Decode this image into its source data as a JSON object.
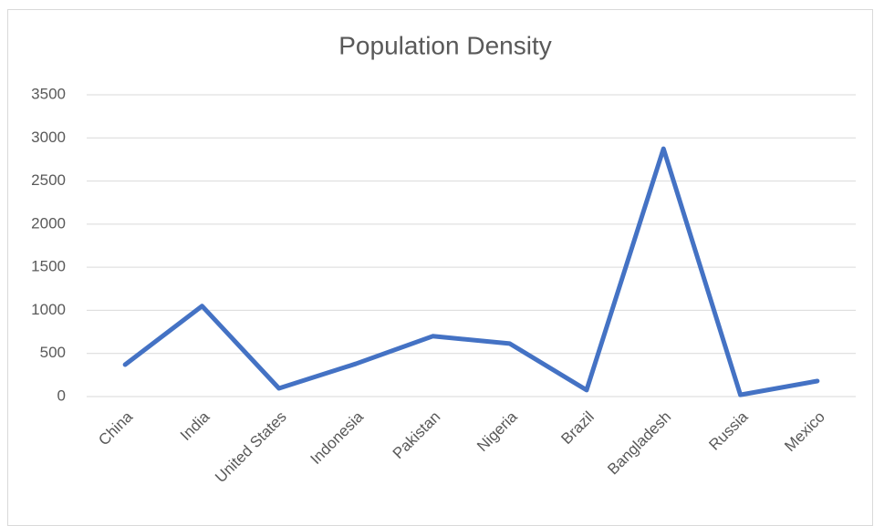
{
  "chart_data": {
    "type": "line",
    "title": "Population Density",
    "categories": [
      "China",
      "India",
      "United States",
      "Indonesia",
      "Pakistan",
      "Nigeria",
      "Brazil",
      "Bangladesh",
      "Russia",
      "Mexico"
    ],
    "series": [
      {
        "name": "Population Density",
        "color": "#4472c4",
        "values": [
          370,
          1050,
          95,
          380,
          700,
          615,
          75,
          2875,
          20,
          180
        ]
      }
    ],
    "ylim": [
      0,
      3500
    ],
    "yticks": [
      0,
      500,
      1000,
      1500,
      2000,
      2500,
      3000,
      3500
    ],
    "grid": true,
    "legend": false
  }
}
